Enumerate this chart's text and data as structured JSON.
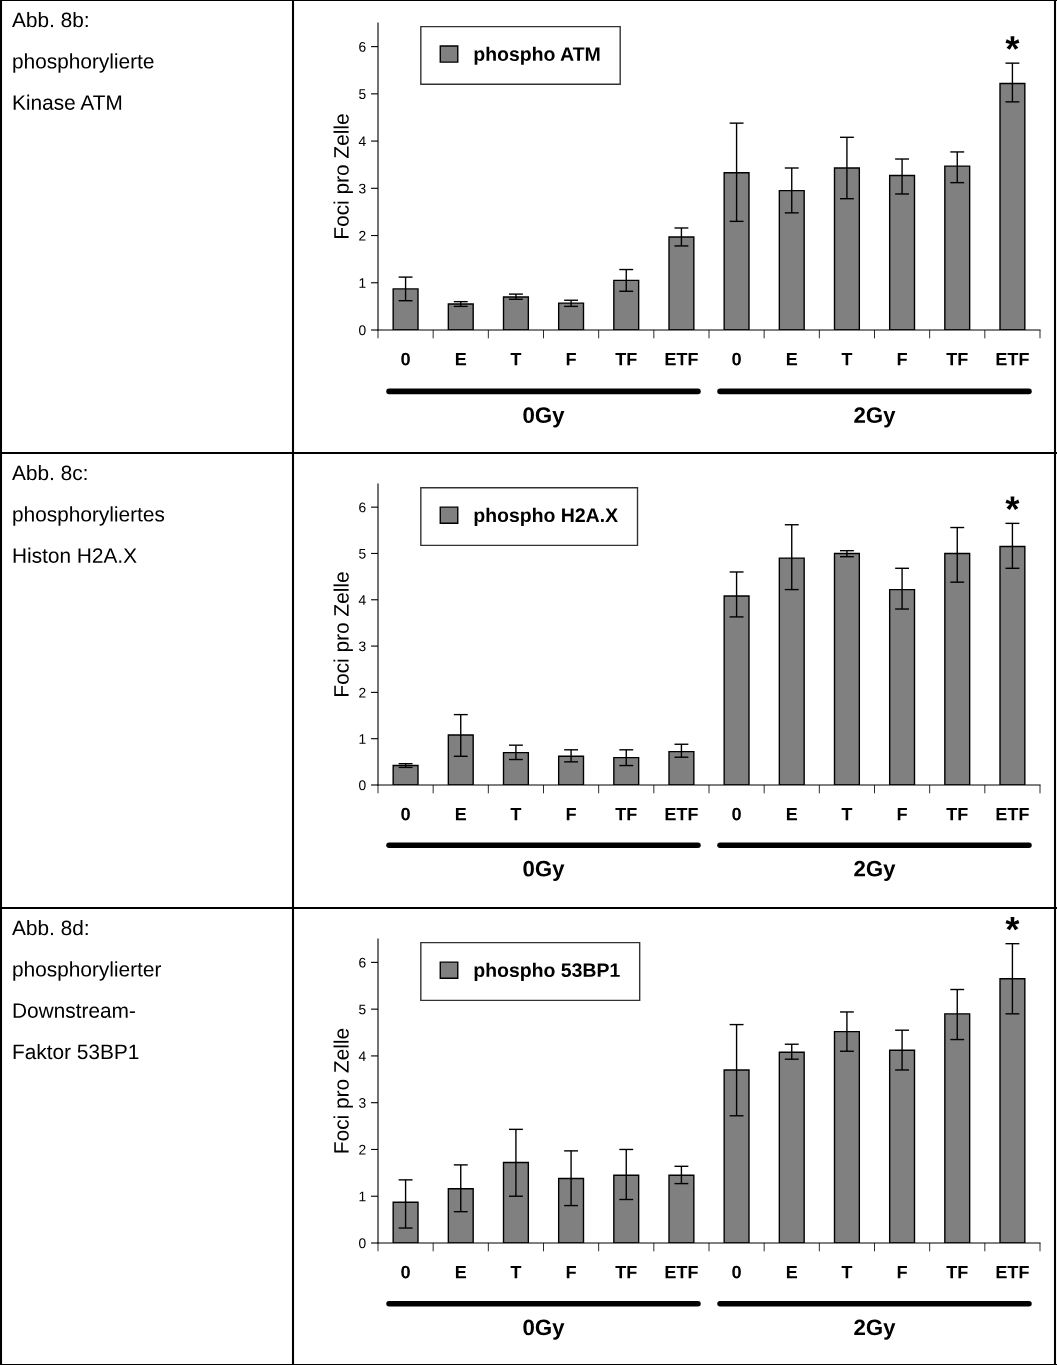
{
  "chart_data": [
    {
      "type": "bar",
      "title": "Abb. 8b:\nphosphorylierte\nKinase ATM",
      "ylabel": "Foci pro Zelle",
      "categories": [
        "0",
        "E",
        "T",
        "F",
        "TF",
        "ETF",
        "0",
        "E",
        "T",
        "F",
        "TF",
        "ETF"
      ],
      "series": [
        {
          "name": "phospho ATM",
          "color": "#808080",
          "values": [
            0.87,
            0.55,
            0.7,
            0.57,
            1.05,
            1.97,
            3.33,
            2.95,
            3.43,
            3.27,
            3.47,
            5.22
          ],
          "errors": [
            [
              0.62,
              1.12
            ],
            [
              0.5,
              0.6
            ],
            [
              0.65,
              0.76
            ],
            [
              0.5,
              0.63
            ],
            [
              0.82,
              1.28
            ],
            [
              1.78,
              2.16
            ],
            [
              2.3,
              4.38
            ],
            [
              2.48,
              3.43
            ],
            [
              2.78,
              4.08
            ],
            [
              2.88,
              3.62
            ],
            [
              3.12,
              3.77
            ],
            [
              4.83,
              5.65
            ]
          ]
        }
      ],
      "ylim": [
        0,
        6.5
      ],
      "yticks": [
        0,
        1,
        2,
        3,
        4,
        5,
        6
      ],
      "grid": false,
      "legend": "top left",
      "annotations": [
        "*",
        "0Gy",
        "2Gy"
      ]
    },
    {
      "type": "bar",
      "title": "Abb. 8c:\nphosphoryliertes\nHiston H2A.X",
      "ylabel": "Foci pro Zelle",
      "categories": [
        "0",
        "E",
        "T",
        "F",
        "TF",
        "ETF",
        "0",
        "E",
        "T",
        "F",
        "TF",
        "ETF"
      ],
      "series": [
        {
          "name": "phospho H2A.X",
          "color": "#808080",
          "values": [
            0.42,
            1.08,
            0.7,
            0.62,
            0.59,
            0.72,
            4.08,
            4.9,
            5.0,
            4.22,
            5.0,
            5.15
          ],
          "errors": [
            [
              0.38,
              0.46
            ],
            [
              0.62,
              1.52
            ],
            [
              0.55,
              0.86
            ],
            [
              0.5,
              0.76
            ],
            [
              0.42,
              0.76
            ],
            [
              0.6,
              0.88
            ],
            [
              3.63,
              4.6
            ],
            [
              4.22,
              5.62
            ],
            [
              4.93,
              5.06
            ],
            [
              3.8,
              4.68
            ],
            [
              4.38,
              5.56
            ],
            [
              4.68,
              5.65
            ]
          ]
        }
      ],
      "ylim": [
        0,
        6.5
      ],
      "yticks": [
        0,
        1,
        2,
        3,
        4,
        5,
        6
      ],
      "grid": false,
      "legend": "top left",
      "annotations": [
        "*",
        "0Gy",
        "2Gy"
      ]
    },
    {
      "type": "bar",
      "title": "Abb. 8d:\nphosphorylierter\nDownstream-\nFaktor 53BP1",
      "ylabel": "Foci pro Zelle",
      "categories": [
        "0",
        "E",
        "T",
        "F",
        "TF",
        "ETF",
        "0",
        "E",
        "T",
        "F",
        "TF",
        "ETF"
      ],
      "series": [
        {
          "name": "phospho 53BP1",
          "color": "#808080",
          "values": [
            0.87,
            1.16,
            1.72,
            1.38,
            1.45,
            1.45,
            3.7,
            4.08,
            4.52,
            4.12,
            4.9,
            5.65
          ],
          "errors": [
            [
              0.32,
              1.35
            ],
            [
              0.67,
              1.67
            ],
            [
              1.0,
              2.43
            ],
            [
              0.8,
              1.97
            ],
            [
              0.93,
              2.0
            ],
            [
              1.27,
              1.64
            ],
            [
              2.72,
              4.67
            ],
            [
              3.93,
              4.25
            ],
            [
              4.1,
              4.94
            ],
            [
              3.7,
              4.55
            ],
            [
              4.35,
              5.42
            ],
            [
              4.9,
              6.4
            ]
          ]
        }
      ],
      "ylim": [
        0,
        6.5
      ],
      "yticks": [
        0,
        1,
        2,
        3,
        4,
        5,
        6
      ],
      "grid": false,
      "legend": "top left",
      "annotations": [
        "*",
        "0Gy",
        "2Gy"
      ]
    }
  ]
}
